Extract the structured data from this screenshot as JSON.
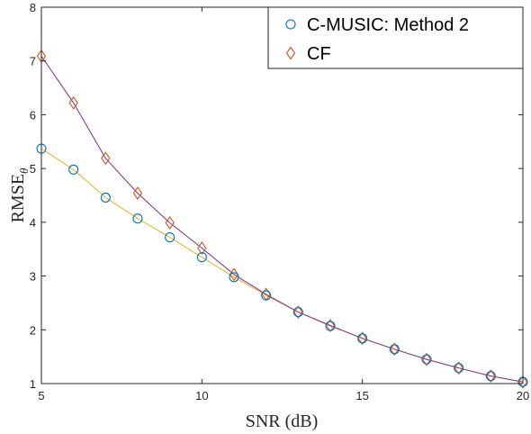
{
  "chart_data": {
    "type": "line",
    "xlabel": "SNR  (dB)",
    "ylabel": "RMSE",
    "ylabel_subscript": "θ",
    "xlim": [
      5,
      20
    ],
    "ylim": [
      1,
      8
    ],
    "xticks": [
      5,
      10,
      15,
      20
    ],
    "yticks": [
      1,
      2,
      3,
      4,
      5,
      6,
      7,
      8
    ],
    "grid": false,
    "legend_position": "top-right",
    "x": [
      5,
      6,
      7,
      8,
      9,
      10,
      11,
      12,
      13,
      14,
      15,
      16,
      17,
      18,
      19,
      20
    ],
    "series": [
      {
        "name": "C-MUSIC: Method 2",
        "marker": "circle",
        "marker_color": "#0072BD",
        "values": [
          5.37,
          4.98,
          4.46,
          4.07,
          3.72,
          3.35,
          2.98,
          2.64,
          2.33,
          2.07,
          1.84,
          1.64,
          1.45,
          1.29,
          1.14,
          1.03
        ]
      },
      {
        "name": "CF",
        "marker": "diamond",
        "marker_color": "#D95319",
        "values": [
          7.09,
          6.22,
          5.19,
          4.54,
          3.99,
          3.52,
          3.03,
          2.66,
          2.33,
          2.08,
          1.84,
          1.64,
          1.45,
          1.29,
          1.14,
          1.03
        ]
      }
    ],
    "line_colors": {
      "c_music": "#EDB120",
      "cf": "#7E2F8E"
    }
  }
}
